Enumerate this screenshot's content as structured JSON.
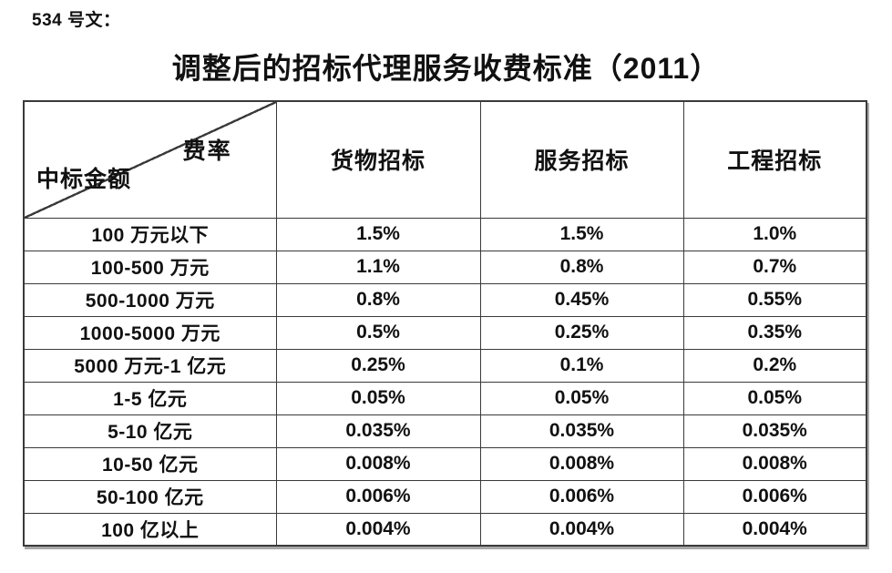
{
  "doc_label": "534 号文：",
  "title": "调整后的招标代理服务收费标准（2011）",
  "table": {
    "corner": {
      "top_right_label": "费率",
      "bottom_left_label": "中标金额"
    },
    "columns": [
      "货物招标",
      "服务招标",
      "工程招标"
    ],
    "rows": [
      {
        "label": "100 万元以下",
        "values": [
          "1.5%",
          "1.5%",
          "1.0%"
        ]
      },
      {
        "label": "100-500 万元",
        "values": [
          "1.1%",
          "0.8%",
          "0.7%"
        ]
      },
      {
        "label": "500-1000 万元",
        "values": [
          "0.8%",
          "0.45%",
          "0.55%"
        ]
      },
      {
        "label": "1000-5000 万元",
        "values": [
          "0.5%",
          "0.25%",
          "0.35%"
        ]
      },
      {
        "label": "5000 万元-1 亿元",
        "values": [
          "0.25%",
          "0.1%",
          "0.2%"
        ]
      },
      {
        "label": "1-5 亿元",
        "values": [
          "0.05%",
          "0.05%",
          "0.05%"
        ]
      },
      {
        "label": "5-10 亿元",
        "values": [
          "0.035%",
          "0.035%",
          "0.035%"
        ]
      },
      {
        "label": "10-50 亿元",
        "values": [
          "0.008%",
          "0.008%",
          "0.008%"
        ]
      },
      {
        "label": "50-100 亿元",
        "values": [
          "0.006%",
          "0.006%",
          "0.006%"
        ]
      },
      {
        "label": "100 亿以上",
        "values": [
          "0.004%",
          "0.004%",
          "0.004%"
        ]
      }
    ]
  },
  "colors": {
    "text": "#111111",
    "table_border": "#3a3a3a",
    "table_shadow": "#a8a8a8",
    "background": "#ffffff"
  }
}
